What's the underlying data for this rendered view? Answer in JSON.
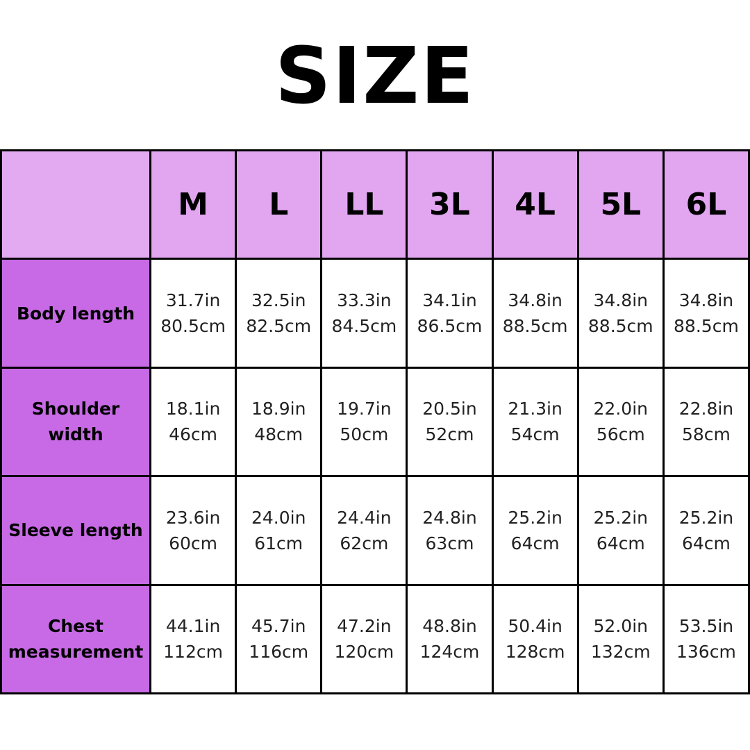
{
  "title": "SIZE",
  "table": {
    "headers": [
      "M",
      "L",
      "LL",
      "3L",
      "4L",
      "5L",
      "6L"
    ],
    "rows": [
      {
        "label": "Body length",
        "cells": [
          [
            "31.7in",
            "80.5cm"
          ],
          [
            "32.5in",
            "82.5cm"
          ],
          [
            "33.3in",
            "84.5cm"
          ],
          [
            "34.1in",
            "86.5cm"
          ],
          [
            "34.8in",
            "88.5cm"
          ],
          [
            "34.8in",
            "88.5cm"
          ],
          [
            "34.8in",
            "88.5cm"
          ]
        ]
      },
      {
        "label": "Shoulder width",
        "cells": [
          [
            "18.1in",
            "46cm"
          ],
          [
            "18.9in",
            "48cm"
          ],
          [
            "19.7in",
            "50cm"
          ],
          [
            "20.5in",
            "52cm"
          ],
          [
            "21.3in",
            "54cm"
          ],
          [
            "22.0in",
            "56cm"
          ],
          [
            "22.8in",
            "58cm"
          ]
        ]
      },
      {
        "label": "Sleeve length",
        "cells": [
          [
            "23.6in",
            "60cm"
          ],
          [
            "24.0in",
            "61cm"
          ],
          [
            "24.4in",
            "62cm"
          ],
          [
            "24.8in",
            "63cm"
          ],
          [
            "25.2in",
            "64cm"
          ],
          [
            "25.2in",
            "64cm"
          ],
          [
            "25.2in",
            "64cm"
          ]
        ]
      },
      {
        "label": "Chest measurement",
        "cells": [
          [
            "44.1in",
            "112cm"
          ],
          [
            "45.7in",
            "116cm"
          ],
          [
            "47.2in",
            "120cm"
          ],
          [
            "48.8in",
            "124cm"
          ],
          [
            "50.4in",
            "128cm"
          ],
          [
            "52.0in",
            "132cm"
          ],
          [
            "53.5in",
            "136cm"
          ]
        ]
      }
    ]
  }
}
